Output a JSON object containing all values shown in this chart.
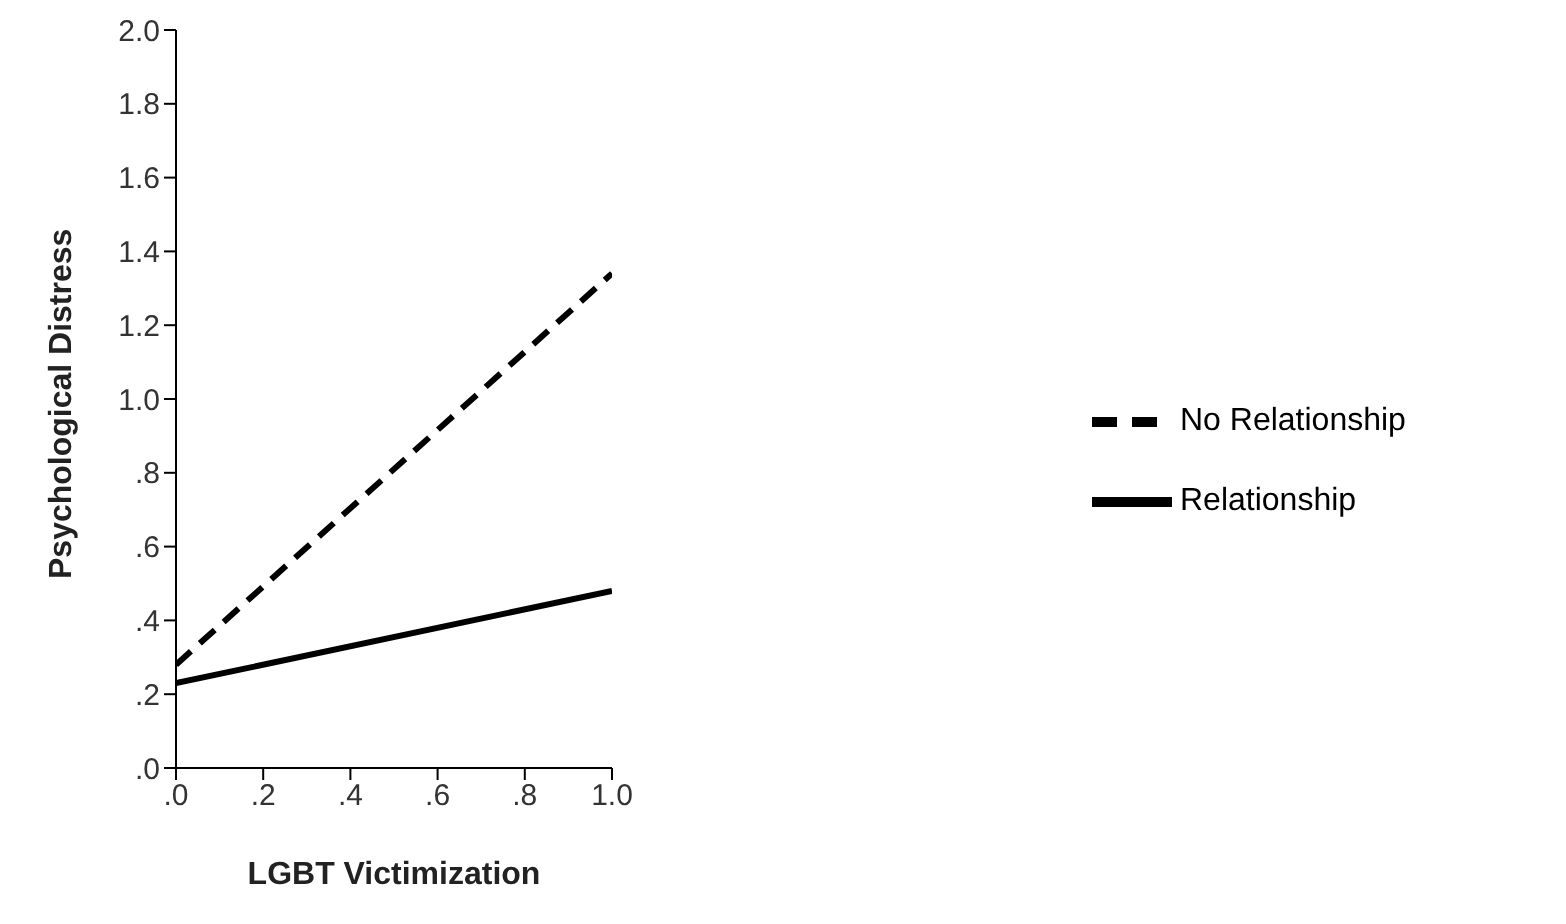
{
  "chart_data": {
    "type": "line",
    "xlabel": "LGBT Victimization",
    "ylabel": "Psychological Distress",
    "x": [
      0,
      1
    ],
    "series": [
      {
        "name": "Relationship",
        "color": "#000000",
        "values": [
          0.23,
          0.48
        ],
        "line_style": "solid"
      },
      {
        "name": "No Relationship",
        "color": "#000000",
        "values": [
          0.28,
          1.34
        ],
        "line_style": "dashed"
      }
    ],
    "xlim": [
      0,
      1
    ],
    "xticks": [
      {
        "value": 0,
        "label": ".0"
      },
      {
        "value": 0.2,
        "label": ".2"
      },
      {
        "value": 0.4,
        "label": ".4"
      },
      {
        "value": 0.6,
        "label": ".6"
      },
      {
        "value": 0.8,
        "label": ".8"
      },
      {
        "value": 1,
        "label": "1.0"
      }
    ],
    "ylim": [
      0,
      2
    ],
    "yticks": [
      {
        "value": 0,
        "label": ".0"
      },
      {
        "value": 0.2,
        "label": ".2"
      },
      {
        "value": 0.4,
        "label": ".4"
      },
      {
        "value": 0.6,
        "label": ".6"
      },
      {
        "value": 0.8,
        "label": ".8"
      },
      {
        "value": 1,
        "label": "1.0"
      },
      {
        "value": 1.2,
        "label": "1.2"
      },
      {
        "value": 1.4,
        "label": "1.4"
      },
      {
        "value": 1.6,
        "label": "1.6"
      },
      {
        "value": 1.8,
        "label": "1.8"
      },
      {
        "value": 2,
        "label": "2.0"
      }
    ],
    "grid": false,
    "legend": "right",
    "marker": "none"
  }
}
